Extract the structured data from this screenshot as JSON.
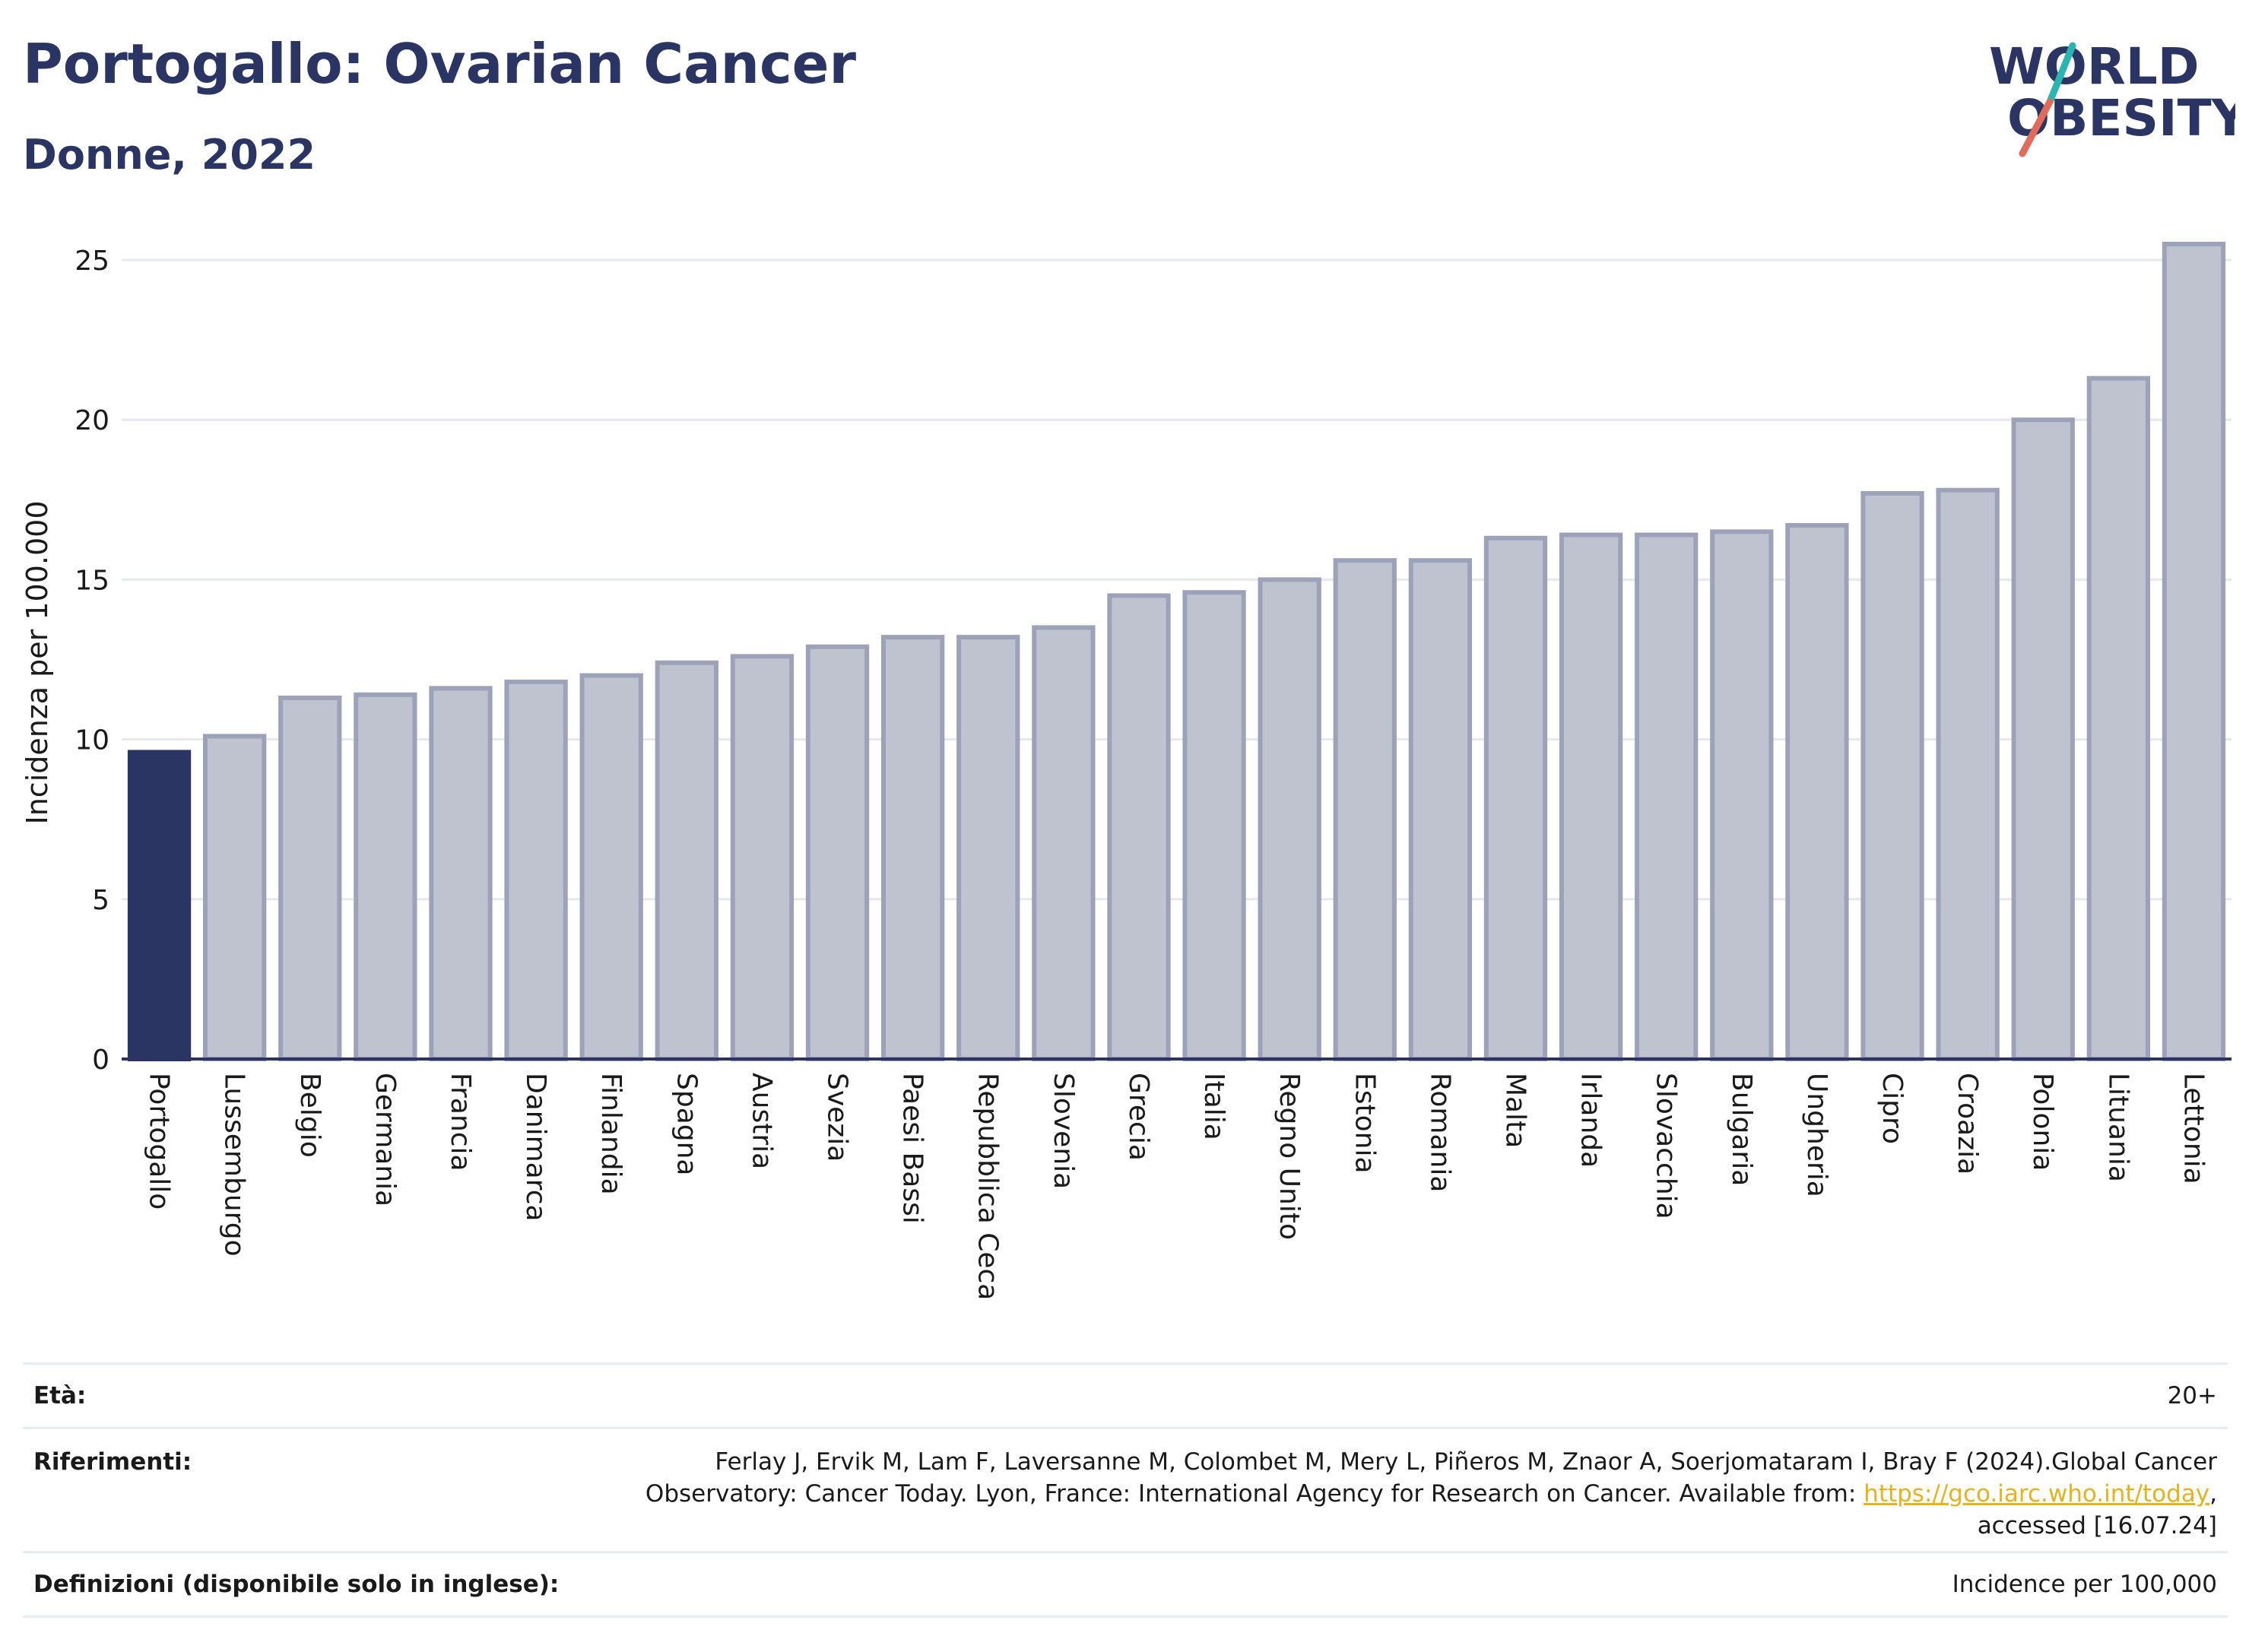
{
  "title": "Portogallo: Ovarian Cancer",
  "subtitle": "Donne, 2022",
  "logo": {
    "line1": "WORLD",
    "line2": "OBESITY"
  },
  "colors": {
    "highlight": "#2b3563",
    "bar": "#bfc3d0",
    "bar_stroke": "#9da2b8",
    "accent_teal": "#2bb5b0",
    "accent_coral": "#e06b5a",
    "link": "#e8b21c"
  },
  "chart_data": {
    "type": "bar",
    "ylabel": "Incidenza per 100.000",
    "ylim": [
      0,
      26
    ],
    "yticks": [
      0,
      5,
      10,
      15,
      20,
      25
    ],
    "grid": true,
    "highlight": "Portogallo",
    "categories": [
      "Portogallo",
      "Lussemburgo",
      "Belgio",
      "Germania",
      "Francia",
      "Danimarca",
      "Finlandia",
      "Spagna",
      "Austria",
      "Svezia",
      "Paesi Bassi",
      "Repubblica Ceca",
      "Slovenia",
      "Grecia",
      "Italia",
      "Regno Unito",
      "Estonia",
      "Romania",
      "Malta",
      "Irlanda",
      "Slovacchia",
      "Bulgaria",
      "Ungheria",
      "Cipro",
      "Croazia",
      "Polonia",
      "Lituania",
      "Lettonia"
    ],
    "values": [
      9.6,
      10.1,
      11.3,
      11.4,
      11.6,
      11.8,
      12.0,
      12.4,
      12.6,
      12.9,
      13.2,
      13.2,
      13.5,
      14.5,
      14.6,
      15.0,
      15.6,
      15.6,
      16.3,
      16.4,
      16.4,
      16.5,
      16.7,
      17.7,
      17.8,
      20.0,
      21.3,
      25.5
    ]
  },
  "footer": {
    "age_label": "Età:",
    "age_value": "20+",
    "ref_label": "Riferimenti:",
    "ref_text1": "Ferlay J, Ervik M, Lam F, Laversanne M, Colombet M, Mery L, Piñeros M, Znaor A, Soerjomataram I, Bray F (2024).Global Cancer",
    "ref_text2": "Observatory: Cancer Today. Lyon, France: International Agency for Research on Cancer. Available from: ",
    "ref_link": "https://gco.iarc.who.int/today",
    "ref_text3": ",",
    "ref_text4": "accessed [16.07.24]",
    "def_label": "Definizioni (disponibile solo in inglese):",
    "def_value": "Incidence per 100,000"
  }
}
